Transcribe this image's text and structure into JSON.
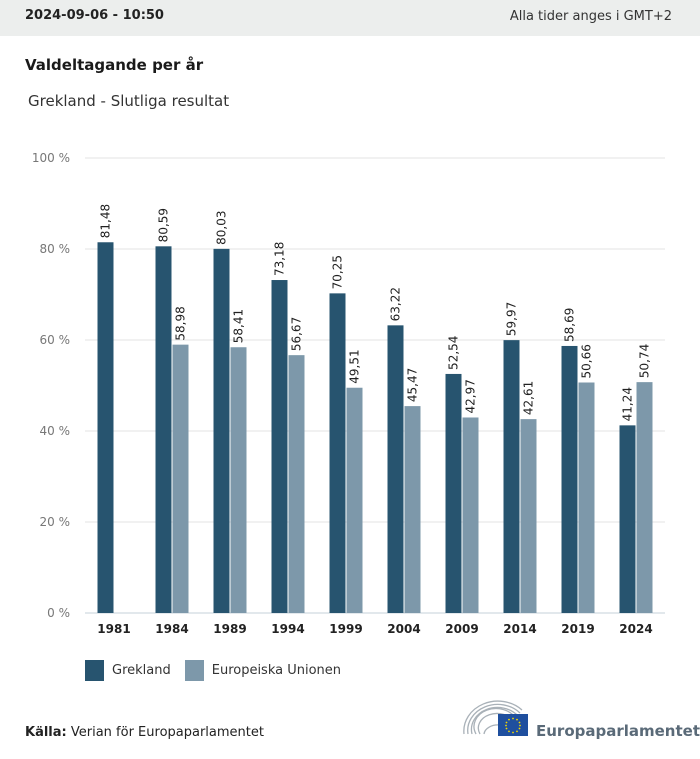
{
  "header": {
    "datetime": "2024-09-06 - 10:50",
    "timezone_note": "Alla tider anges i GMT+2"
  },
  "title": "Valdeltagande per år",
  "subtitle": "Grekland - Slutliga resultat",
  "colors": {
    "grekland": "#27546f",
    "eu": "#7d98aa",
    "grid": "#e3e3e3",
    "axis": "#c5d0d8"
  },
  "chart_data": {
    "type": "bar",
    "title": "Valdeltagande per år",
    "subtitle": "Grekland - Slutliga resultat",
    "xlabel": "",
    "ylabel": "",
    "ylim": [
      0,
      100
    ],
    "yticks": [
      0,
      20,
      40,
      60,
      80,
      100
    ],
    "ytick_labels": [
      "0 %",
      "20 %",
      "40 %",
      "60 %",
      "80 %",
      "100 %"
    ],
    "grid": true,
    "legend_position": "bottom-left",
    "categories": [
      "1981",
      "1984",
      "1989",
      "1994",
      "1999",
      "2004",
      "2009",
      "2014",
      "2019",
      "2024"
    ],
    "series": [
      {
        "name": "Grekland",
        "values": [
          81.48,
          80.59,
          80.03,
          73.18,
          70.25,
          63.22,
          52.54,
          59.97,
          58.69,
          41.24
        ],
        "labels": [
          "81,48",
          "80,59",
          "80,03",
          "73,18",
          "70,25",
          "63,22",
          "52,54",
          "59,97",
          "58,69",
          "41,24"
        ]
      },
      {
        "name": "Europeiska Unionen",
        "values": [
          null,
          58.98,
          58.41,
          56.67,
          49.51,
          45.47,
          42.97,
          42.61,
          50.66,
          50.74
        ],
        "labels": [
          null,
          "58,98",
          "58,41",
          "56,67",
          "49,51",
          "45,47",
          "42,97",
          "42,61",
          "50,66",
          "50,74"
        ]
      }
    ]
  },
  "legend": [
    {
      "label": "Grekland"
    },
    {
      "label": "Europeiska Unionen"
    }
  ],
  "source": {
    "label": "Källa:",
    "text": "Verian för Europaparlamentet"
  },
  "logo": {
    "name": "Europaparlamentet",
    "icon": "european-parliament-hemicycle-logo"
  }
}
